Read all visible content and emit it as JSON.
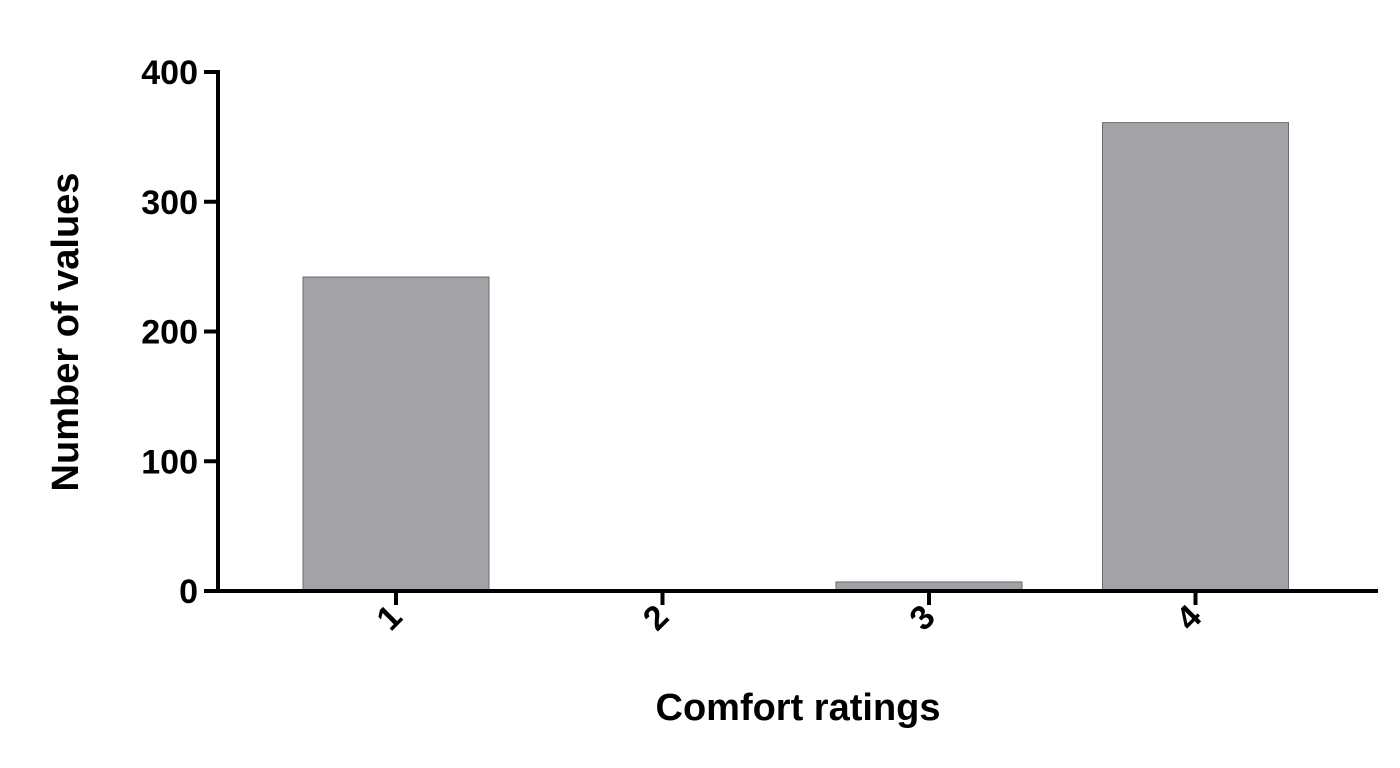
{
  "chart_data": {
    "type": "bar",
    "categories": [
      "1",
      "2",
      "3",
      "4"
    ],
    "values": [
      242,
      0,
      7,
      361
    ],
    "title": "",
    "xlabel": "Comfort ratings",
    "ylabel": "Number of values",
    "ylim": [
      0,
      400
    ],
    "yticks": [
      0,
      100,
      200,
      300,
      400
    ],
    "bar_color": "#a3a2a7",
    "grid": false,
    "legend": "none"
  }
}
